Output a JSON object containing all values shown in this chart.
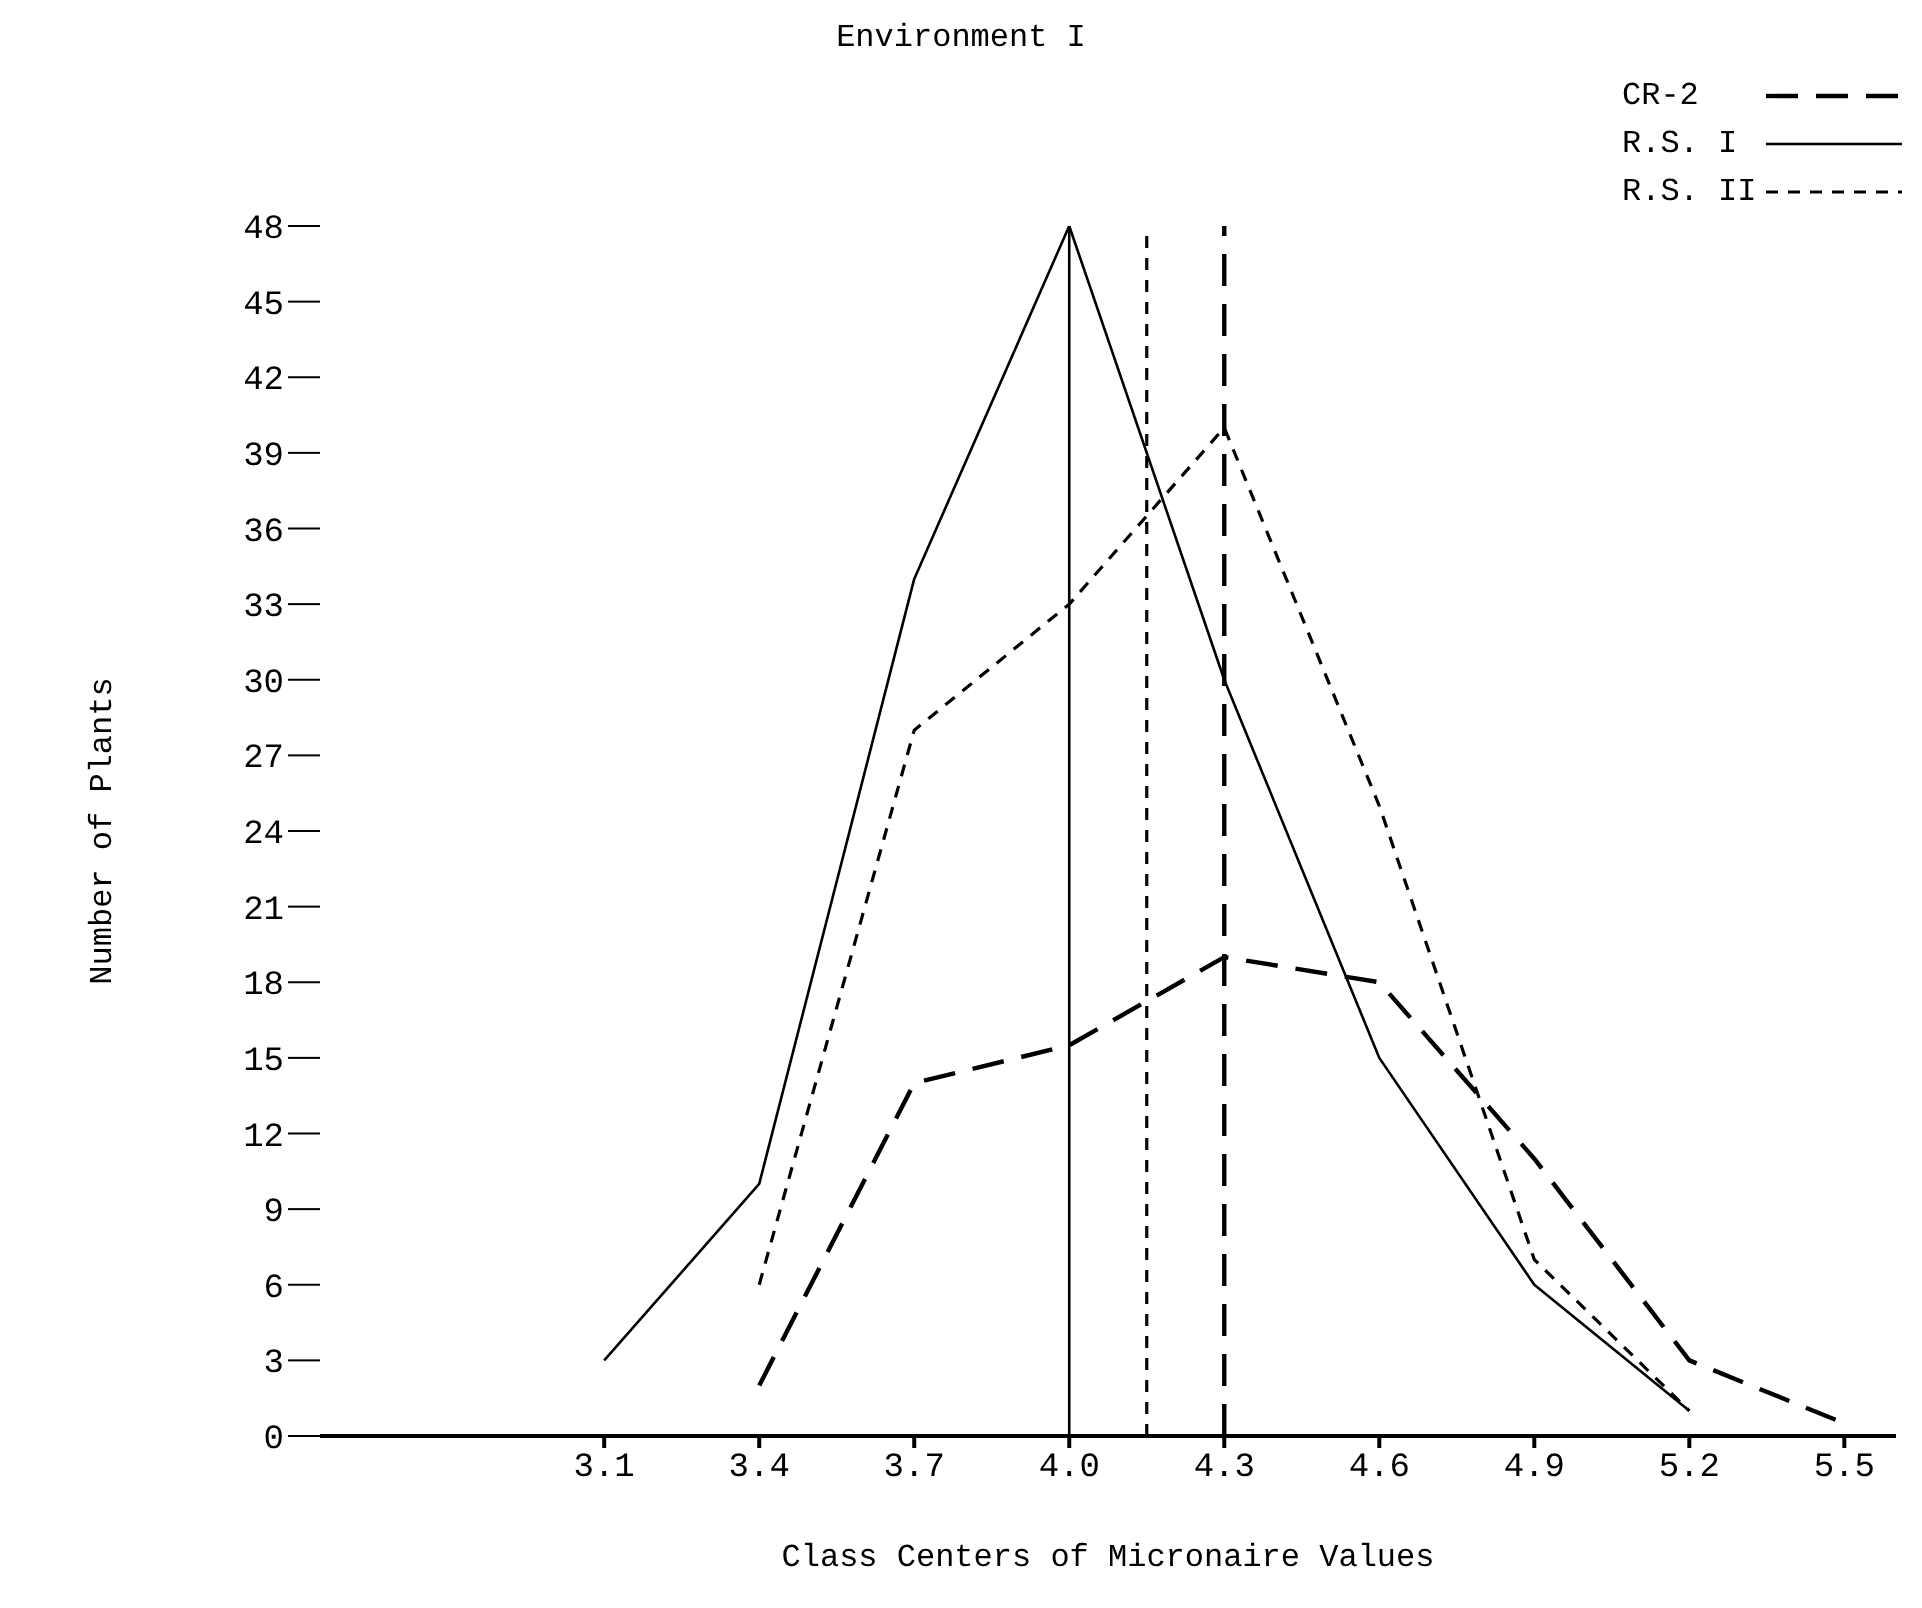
{
  "chart_data": {
    "type": "line",
    "title": "Environment I",
    "xlabel": "Class Centers of Micronaire Values",
    "ylabel": "Number of Plants",
    "xlim": [
      2.55,
      5.6
    ],
    "xticks": [
      3.1,
      3.4,
      3.7,
      {
        "value": 4,
        "label": "4.0"
      },
      4.3,
      4.6,
      4.9,
      5.2,
      5.5
    ],
    "ylim": [
      0,
      48
    ],
    "yticks": [
      0,
      3,
      6,
      9,
      12,
      15,
      18,
      21,
      24,
      27,
      30,
      33,
      36,
      39,
      42,
      45,
      48
    ],
    "grid": false,
    "legend": "top right",
    "marker": "none",
    "series": [
      {
        "name": "CR-2",
        "color": "#000000",
        "line_style": "dashed",
        "x": [
          3.4,
          3.7,
          4.0,
          4.3,
          4.6,
          4.9,
          5.2,
          5.5
        ],
        "values": [
          2,
          14,
          15.5,
          19,
          18,
          11,
          3,
          0.5
        ]
      },
      {
        "name": "R.S. I",
        "color": "#000000",
        "line_style": "solid",
        "x": [
          3.1,
          3.4,
          3.7,
          4.0,
          4.3,
          4.6,
          4.9,
          5.2
        ],
        "values": [
          3,
          10,
          34,
          48,
          30,
          15,
          6,
          1
        ]
      },
      {
        "name": "R.S. II",
        "color": "#000000",
        "line_style": "dotted",
        "x": [
          3.4,
          3.7,
          4.0,
          4.3,
          4.6,
          4.9,
          5.2
        ],
        "values": [
          6,
          28,
          33,
          40,
          25,
          7,
          1
        ]
      }
    ],
    "ref_lines": [
      {
        "axis": "x",
        "value": 4.0,
        "color": "#000000",
        "line_style": "solid"
      },
      {
        "axis": "x",
        "value": 4.15,
        "color": "#000000",
        "line_style": "dotted"
      },
      {
        "axis": "x",
        "value": 4.3,
        "color": "#000000",
        "line_style": "dashed"
      }
    ]
  }
}
